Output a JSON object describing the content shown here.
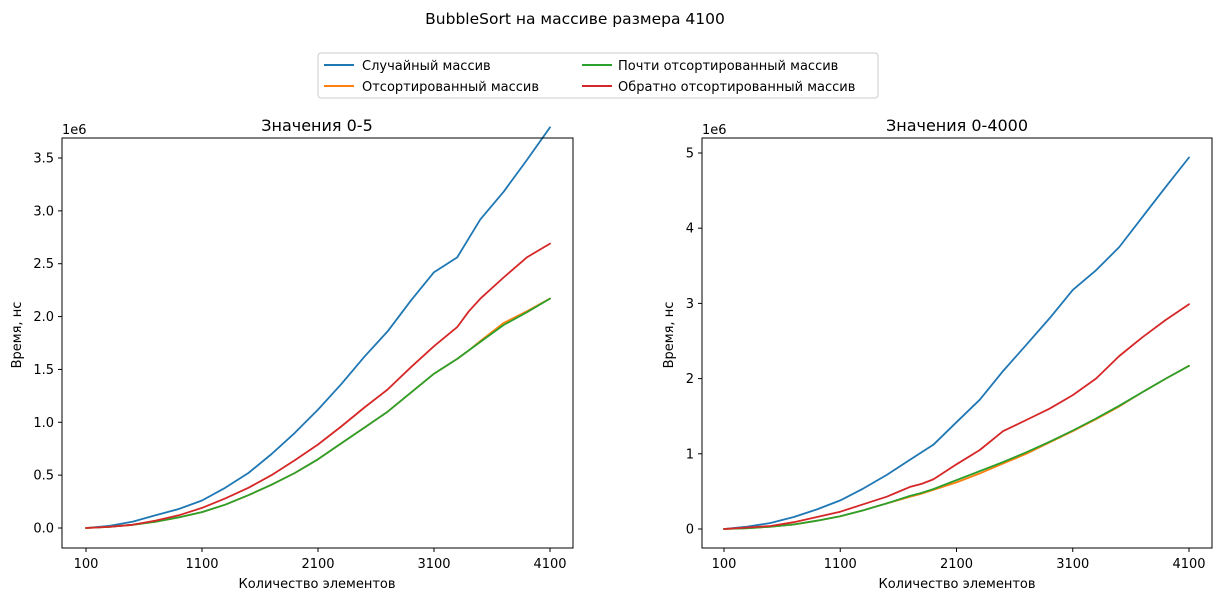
{
  "figure": {
    "title": "BubbleSort на массиве размера 4100",
    "legend": {
      "placement": "top-center",
      "entries": [
        {
          "label": "Случайный массив",
          "color": "#1f77b4"
        },
        {
          "label": "Отсортированный массив",
          "color": "#ff7f0e"
        },
        {
          "label": "Почти отсортированный массив",
          "color": "#2ca02c"
        },
        {
          "label": "Обратно отсортированный массив",
          "color": "#d62728"
        }
      ]
    }
  },
  "chart_data": [
    {
      "type": "line",
      "title": "Значения 0-5",
      "xlabel": "Количество элементов",
      "ylabel": "Время, нс",
      "offset_text": "1e6",
      "xlim": [
        100,
        4100
      ],
      "ylim": [
        0,
        3.9
      ],
      "xticks": [
        100,
        1100,
        2100,
        3100,
        4100
      ],
      "yticks": [
        0.0,
        0.5,
        1.0,
        1.5,
        2.0,
        2.5,
        3.0,
        3.5
      ],
      "ytick_labels": [
        "0.0",
        "0.5",
        "1.0",
        "1.5",
        "2.0",
        "2.5",
        "3.0",
        "3.5"
      ],
      "x": [
        100,
        300,
        500,
        700,
        900,
        1100,
        1300,
        1500,
        1700,
        1900,
        2100,
        2300,
        2500,
        2700,
        2900,
        3100,
        3300,
        3400,
        3500,
        3700,
        3900,
        4100
      ],
      "series": [
        {
          "name": "Случайный массив",
          "color": "#1f77b4",
          "values": [
            0.0,
            0.02,
            0.06,
            0.12,
            0.18,
            0.26,
            0.38,
            0.52,
            0.7,
            0.9,
            1.12,
            1.36,
            1.62,
            1.86,
            2.15,
            2.42,
            2.56,
            2.74,
            2.92,
            3.18,
            3.48,
            3.79
          ]
        },
        {
          "name": "Отсортированный массив",
          "color": "#ff7f0e",
          "values": [
            0.0,
            0.01,
            0.03,
            0.06,
            0.1,
            0.15,
            0.22,
            0.31,
            0.41,
            0.52,
            0.65,
            0.8,
            0.95,
            1.1,
            1.28,
            1.46,
            1.6,
            1.68,
            1.77,
            1.94,
            2.05,
            2.17
          ]
        },
        {
          "name": "Почти отсортированный массив",
          "color": "#2ca02c",
          "values": [
            0.0,
            0.01,
            0.03,
            0.06,
            0.1,
            0.15,
            0.22,
            0.31,
            0.41,
            0.52,
            0.65,
            0.8,
            0.95,
            1.1,
            1.28,
            1.46,
            1.6,
            1.68,
            1.76,
            1.92,
            2.04,
            2.17
          ]
        },
        {
          "name": "Обратно отсортированный массив",
          "color": "#d62728",
          "values": [
            0.0,
            0.01,
            0.03,
            0.07,
            0.12,
            0.19,
            0.28,
            0.38,
            0.5,
            0.64,
            0.79,
            0.96,
            1.14,
            1.31,
            1.52,
            1.72,
            1.9,
            2.05,
            2.17,
            2.37,
            2.56,
            2.69
          ]
        }
      ]
    },
    {
      "type": "line",
      "title": "Значения 0-4000",
      "xlabel": "Количество элементов",
      "ylabel": "Время, нс",
      "offset_text": "1e6",
      "xlim": [
        100,
        4100
      ],
      "ylim": [
        0,
        5.1
      ],
      "xticks": [
        100,
        1100,
        2100,
        3100,
        4100
      ],
      "yticks": [
        0,
        1,
        2,
        3,
        4,
        5
      ],
      "ytick_labels": [
        "0",
        "1",
        "2",
        "3",
        "4",
        "5"
      ],
      "x": [
        100,
        300,
        500,
        700,
        900,
        1100,
        1300,
        1500,
        1700,
        1800,
        1900,
        2100,
        2300,
        2500,
        2700,
        2900,
        3100,
        3300,
        3500,
        3700,
        3900,
        4100
      ],
      "series": [
        {
          "name": "Случайный массив",
          "color": "#1f77b4",
          "values": [
            0.0,
            0.03,
            0.08,
            0.16,
            0.26,
            0.38,
            0.54,
            0.72,
            0.92,
            1.02,
            1.12,
            1.42,
            1.72,
            2.1,
            2.45,
            2.8,
            3.18,
            3.44,
            3.75,
            4.15,
            4.55,
            4.94
          ]
        },
        {
          "name": "Отсортированный массив",
          "color": "#ff7f0e",
          "values": [
            0.0,
            0.01,
            0.03,
            0.06,
            0.11,
            0.17,
            0.25,
            0.34,
            0.43,
            0.47,
            0.52,
            0.62,
            0.74,
            0.87,
            1.0,
            1.15,
            1.3,
            1.46,
            1.63,
            1.82,
            2.0,
            2.17
          ]
        },
        {
          "name": "Почти отсортированный массив",
          "color": "#2ca02c",
          "values": [
            0.0,
            0.01,
            0.03,
            0.06,
            0.11,
            0.17,
            0.25,
            0.34,
            0.44,
            0.48,
            0.53,
            0.65,
            0.77,
            0.89,
            1.02,
            1.16,
            1.31,
            1.47,
            1.64,
            1.82,
            2.0,
            2.17
          ]
        },
        {
          "name": "Обратно отсортированный массив",
          "color": "#d62728",
          "values": [
            0.0,
            0.02,
            0.04,
            0.09,
            0.16,
            0.23,
            0.33,
            0.43,
            0.56,
            0.6,
            0.66,
            0.86,
            1.05,
            1.3,
            1.45,
            1.6,
            1.78,
            2.0,
            2.3,
            2.55,
            2.78,
            2.99
          ]
        }
      ]
    }
  ]
}
